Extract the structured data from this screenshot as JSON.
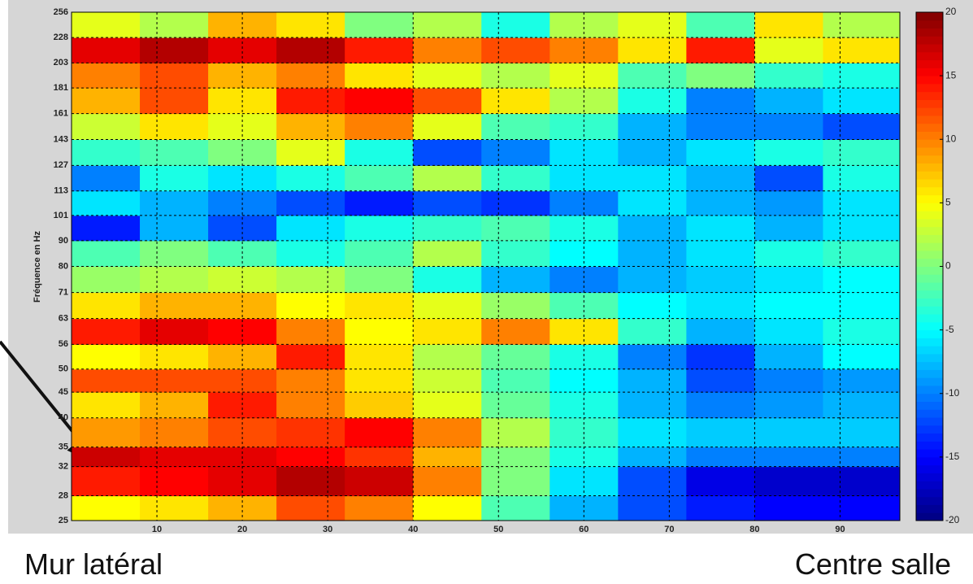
{
  "chart_data": {
    "type": "heatmap",
    "colormap": "jet",
    "y_label": "Fréquence en Hz",
    "xbins": [
      0,
      8,
      16,
      24,
      32,
      40,
      48,
      56,
      64,
      72,
      80,
      88,
      97
    ],
    "ybins": [
      25,
      28,
      32,
      35,
      40,
      45,
      50,
      56,
      63,
      71,
      80,
      90,
      101,
      113,
      127,
      143,
      161,
      181,
      203,
      228,
      256
    ],
    "z": [
      [
        5,
        6,
        8,
        12,
        10,
        5,
        -2,
        -8,
        -12,
        -14,
        -15,
        -15
      ],
      [
        14,
        15,
        16,
        18,
        17,
        10,
        0,
        -6,
        -12,
        -16,
        -17,
        -17
      ],
      [
        17,
        16,
        16,
        15,
        13,
        8,
        0,
        -4,
        -8,
        -10,
        -10,
        -10
      ],
      [
        9,
        10,
        12,
        13,
        15,
        10,
        2,
        -3,
        -6,
        -7,
        -7,
        -7
      ],
      [
        6,
        8,
        14,
        10,
        7,
        4,
        -1,
        -4,
        -8,
        -10,
        -9,
        -8
      ],
      [
        12,
        12,
        12,
        10,
        6,
        3,
        -2,
        -5,
        -8,
        -12,
        -10,
        -9
      ],
      [
        5,
        6,
        8,
        14,
        6,
        2,
        -1,
        -4,
        -10,
        -13,
        -8,
        -5
      ],
      [
        14,
        16,
        15,
        10,
        5,
        6,
        10,
        6,
        -3,
        -8,
        -6,
        -4
      ],
      [
        6,
        8,
        8,
        5,
        6,
        4,
        1,
        -2,
        -5,
        -6,
        -5,
        -5
      ],
      [
        1,
        2,
        3,
        2,
        0,
        -4,
        -8,
        -10,
        -8,
        -7,
        -6,
        -5
      ],
      [
        -2,
        0,
        -2,
        -4,
        -2,
        2,
        -3,
        -5,
        -8,
        -6,
        -4,
        -3
      ],
      [
        -14,
        -8,
        -12,
        -6,
        -4,
        -3,
        -2,
        -4,
        -8,
        -6,
        -8,
        -6
      ],
      [
        -6,
        -8,
        -10,
        -12,
        -14,
        -12,
        -13,
        -10,
        -6,
        -8,
        -9,
        -6
      ],
      [
        -10,
        -4,
        -6,
        -4,
        -2,
        2,
        -3,
        -6,
        -6,
        -8,
        -12,
        -4
      ],
      [
        -3,
        -2,
        0,
        4,
        -4,
        -12,
        -10,
        -6,
        -8,
        -6,
        -4,
        -3
      ],
      [
        3,
        6,
        4,
        8,
        10,
        4,
        -2,
        -3,
        -8,
        -10,
        -10,
        -12
      ],
      [
        8,
        12,
        6,
        14,
        15,
        12,
        6,
        2,
        -4,
        -10,
        -8,
        -6
      ],
      [
        10,
        12,
        8,
        10,
        6,
        4,
        2,
        4,
        -2,
        0,
        -3,
        -4
      ],
      [
        16,
        18,
        16,
        18,
        14,
        10,
        12,
        10,
        6,
        14,
        4,
        6
      ],
      [
        4,
        2,
        8,
        6,
        0,
        2,
        -4,
        2,
        4,
        -2,
        6,
        2
      ]
    ],
    "xlim": [
      0,
      97
    ],
    "xticks": [
      10,
      20,
      30,
      40,
      50,
      60,
      70,
      80,
      90
    ],
    "ylim": [
      25,
      256
    ],
    "ylog": true,
    "yticks": [
      25,
      28,
      32,
      35,
      40,
      45,
      50,
      56,
      63,
      71,
      80,
      90,
      101,
      113,
      127,
      143,
      161,
      181,
      203,
      228,
      256
    ],
    "zlim": [
      -20,
      20
    ],
    "zticks": [
      -20,
      -15,
      -10,
      -5,
      0,
      5,
      10,
      15,
      20
    ],
    "grid": true,
    "annotations": [
      "Mur latéral",
      "Centre salle"
    ]
  }
}
